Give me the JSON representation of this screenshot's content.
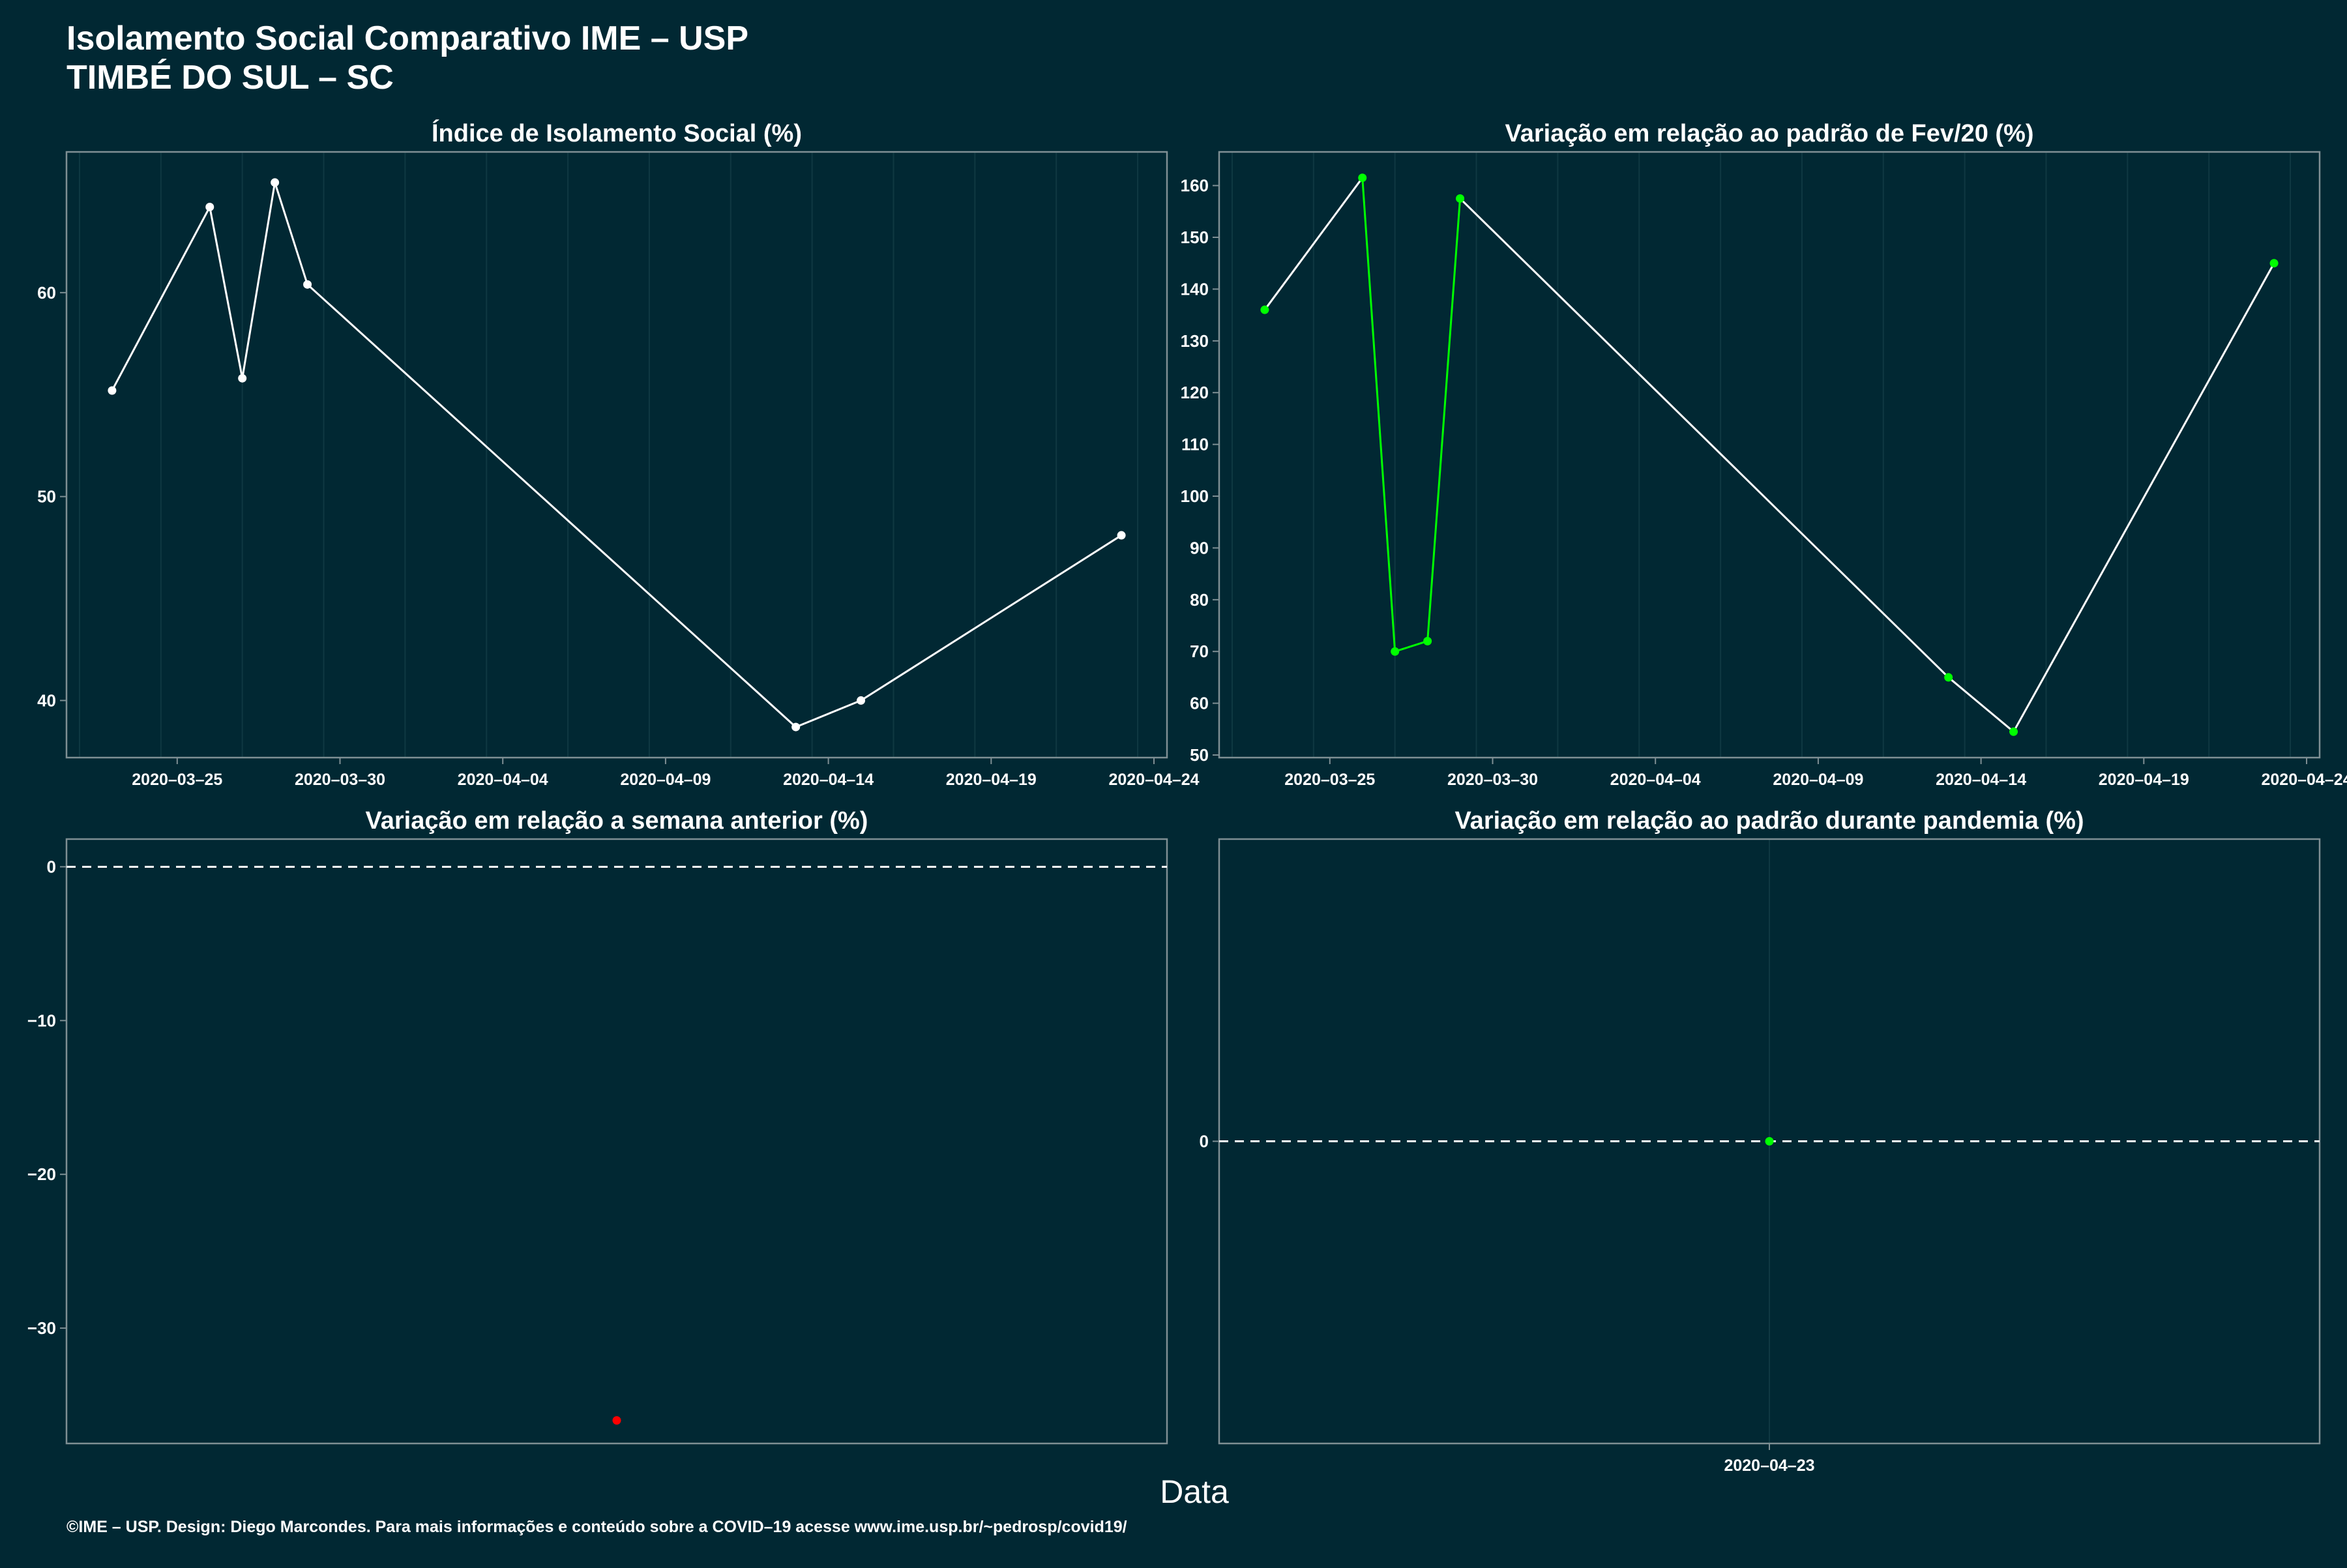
{
  "title_line1": "Isolamento Social Comparativo IME – USP",
  "title_line2": "TIMBÉ DO SUL – SC",
  "xlabel": "Data",
  "caption": "©IME – USP. Design: Diego Marcondes. Para mais informações e conteúdo sobre a COVID–19 acesse www.ime.usp.br/~pedrosp/covid19/",
  "colors": {
    "background": "#012833",
    "line": "#ffffff",
    "positive": "#00ff00",
    "negative": "#ff0000",
    "panel_border": "#7f8f94",
    "grid": "#0f3842"
  },
  "chart_data": [
    {
      "type": "line",
      "title": "Índice de Isolamento Social (%)",
      "x": [
        "2020-03-23",
        "2020-03-26",
        "2020-03-27",
        "2020-03-28",
        "2020-03-29",
        "2020-04-13",
        "2020-04-15",
        "2020-04-23"
      ],
      "y": [
        55.2,
        64.2,
        55.8,
        65.4,
        60.4,
        38.7,
        40.0,
        48.1
      ],
      "ylim": [
        37.2,
        66.9
      ],
      "yticks": [
        40,
        50,
        60
      ],
      "xticks": [
        "2020-03-25",
        "2020-03-30",
        "2020-04-04",
        "2020-04-09",
        "2020-04-14",
        "2020-04-19",
        "2020-04-24"
      ],
      "point_color": "#ffffff"
    },
    {
      "type": "line",
      "title": "Variação em relação ao padrão de Fev/20 (%)",
      "x": [
        "2020-03-23",
        "2020-03-26",
        "2020-03-27",
        "2020-03-28",
        "2020-03-29",
        "2020-04-13",
        "2020-04-15",
        "2020-04-23"
      ],
      "y": [
        136,
        161.5,
        70,
        72,
        157.5,
        65,
        54.5,
        145
      ],
      "ylim": [
        49.5,
        166.5
      ],
      "yticks": [
        50,
        60,
        70,
        80,
        90,
        100,
        110,
        120,
        130,
        140,
        150,
        160
      ],
      "xticks": [
        "2020-03-25",
        "2020-03-30",
        "2020-04-04",
        "2020-04-09",
        "2020-04-14",
        "2020-04-19",
        "2020-04-24"
      ],
      "point_color": "#00ff00",
      "segment_colors": [
        "#ffffff",
        "#00ff00",
        "#00ff00",
        "#00ff00",
        "#ffffff",
        "#ffffff",
        "#ffffff"
      ]
    },
    {
      "type": "scatter",
      "title": "Variação em relação a semana anterior (%)",
      "x": [
        "2020-04-23"
      ],
      "y": [
        -36
      ],
      "ylim": [
        -37.5,
        1.8
      ],
      "yticks": [
        0,
        -10,
        -20,
        -30
      ],
      "reference_line": 0,
      "point_color": "#ff0000"
    },
    {
      "type": "scatter",
      "title": "Variação em relação ao padrão durante pandemia (%)",
      "x": [
        "2020-04-23"
      ],
      "y": [
        0
      ],
      "ylim": [
        -1,
        1
      ],
      "yticks": [
        0
      ],
      "xticks": [
        "2020-04-23"
      ],
      "reference_line": 0,
      "point_color": "#00ff00"
    }
  ]
}
